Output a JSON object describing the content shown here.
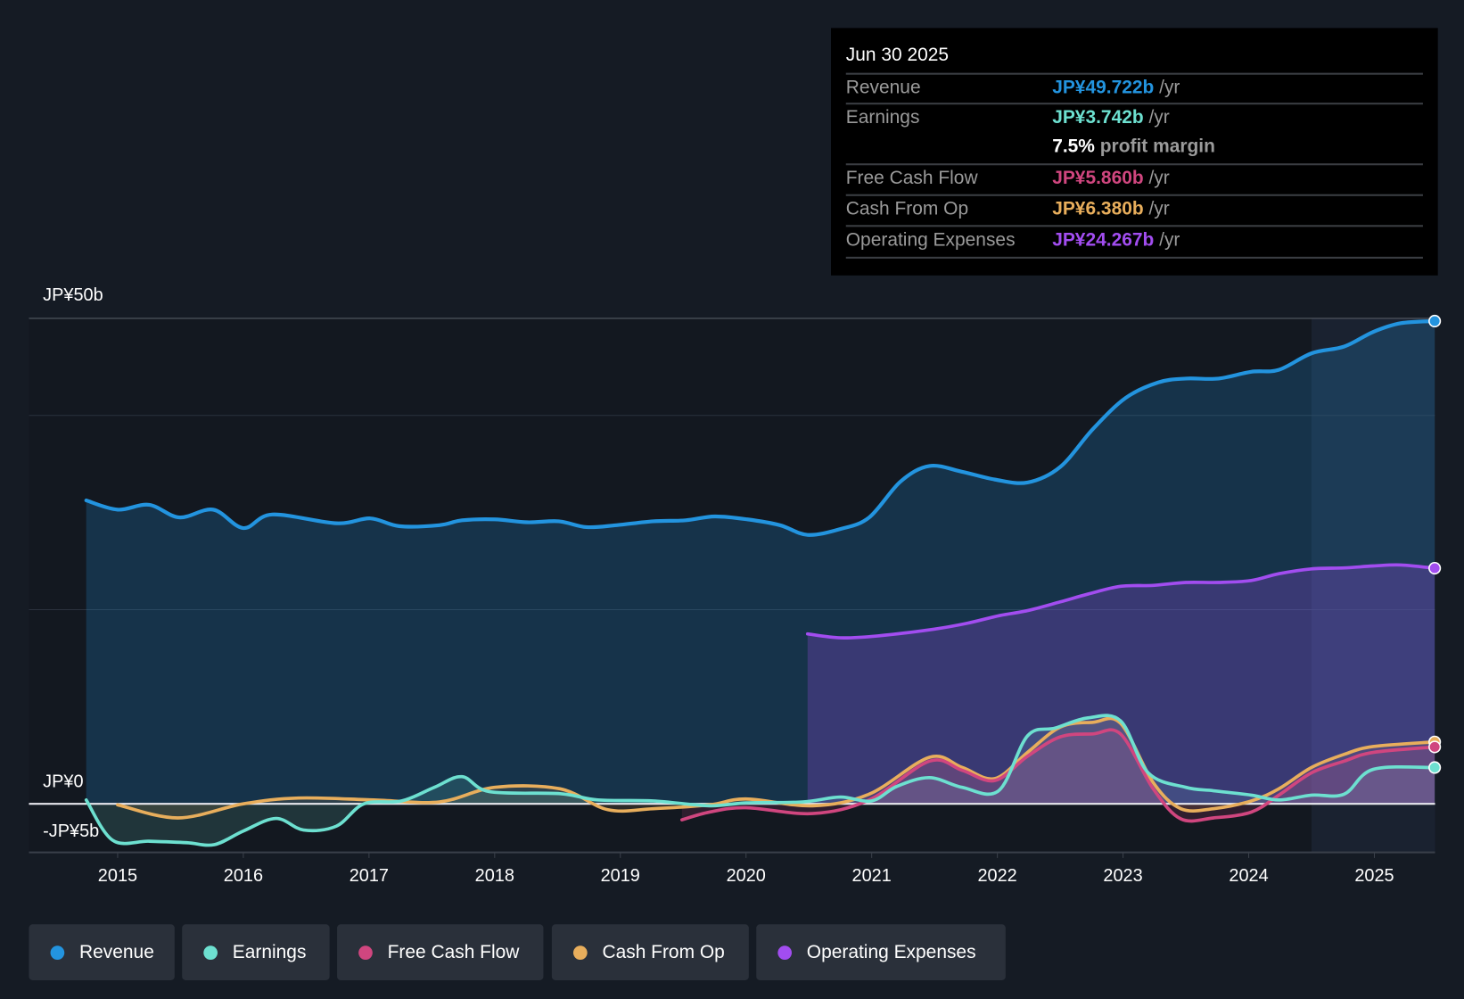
{
  "tooltip": {
    "date": "Jun 30 2025",
    "rows": [
      {
        "label": "Revenue",
        "value": "JP¥49.722b",
        "unit": " /yr",
        "color": "#2394df"
      },
      {
        "label": "Earnings",
        "value": "JP¥3.742b",
        "unit": " /yr",
        "color": "#6de0d0"
      },
      {
        "label": "",
        "value": "7.5%",
        "unit": " profit margin",
        "color": "#ffffff"
      },
      {
        "label": "Free Cash Flow",
        "value": "JP¥5.860b",
        "unit": " /yr",
        "color": "#d0467f"
      },
      {
        "label": "Cash From Op",
        "value": "JP¥6.380b",
        "unit": " /yr",
        "color": "#e8ae5c"
      },
      {
        "label": "Operating Expenses",
        "value": "JP¥24.267b",
        "unit": " /yr",
        "color": "#a24df0"
      }
    ]
  },
  "chart_data": {
    "type": "line",
    "title": "",
    "xlabel": "",
    "ylabel": "",
    "y_tick_labels": [
      "JP¥50b",
      "JP¥0",
      "-JP¥5b"
    ],
    "y_ticks": [
      50,
      0,
      -5
    ],
    "ylim": [
      -5,
      50
    ],
    "xlim": [
      2014.5,
      2025.5
    ],
    "x_ticks": [
      2015,
      2016,
      2017,
      2018,
      2019,
      2020,
      2021,
      2022,
      2023,
      2024,
      2025
    ],
    "x_tick_labels": [
      "2015",
      "2016",
      "2017",
      "2018",
      "2019",
      "2020",
      "2021",
      "2022",
      "2023",
      "2024",
      "2025"
    ],
    "highlight_from": 2024.5,
    "legend_position": "bottom-left",
    "series": [
      {
        "name": "Revenue",
        "color": "#2394df",
        "area": true,
        "points": [
          [
            2014.75,
            31.25
          ],
          [
            2015.0,
            30.3
          ],
          [
            2015.25,
            30.8
          ],
          [
            2015.49,
            29.5
          ],
          [
            2015.76,
            30.3
          ],
          [
            2016.0,
            28.4
          ],
          [
            2016.23,
            29.8
          ],
          [
            2016.74,
            28.9
          ],
          [
            2017.01,
            29.4
          ],
          [
            2017.24,
            28.6
          ],
          [
            2017.56,
            28.7
          ],
          [
            2017.74,
            29.2
          ],
          [
            2018.0,
            29.3
          ],
          [
            2018.26,
            29.0
          ],
          [
            2018.51,
            29.1
          ],
          [
            2018.73,
            28.5
          ],
          [
            2018.97,
            28.7
          ],
          [
            2019.26,
            29.1
          ],
          [
            2019.52,
            29.2
          ],
          [
            2019.75,
            29.6
          ],
          [
            2020.01,
            29.3
          ],
          [
            2020.27,
            28.7
          ],
          [
            2020.49,
            27.7
          ],
          [
            2020.75,
            28.3
          ],
          [
            2020.98,
            29.5
          ],
          [
            2021.23,
            33.2
          ],
          [
            2021.46,
            34.8
          ],
          [
            2021.72,
            34.2
          ],
          [
            2021.98,
            33.4
          ],
          [
            2022.24,
            33.1
          ],
          [
            2022.5,
            34.7
          ],
          [
            2022.76,
            38.6
          ],
          [
            2023.02,
            41.8
          ],
          [
            2023.28,
            43.4
          ],
          [
            2023.5,
            43.8
          ],
          [
            2023.76,
            43.8
          ],
          [
            2024.02,
            44.5
          ],
          [
            2024.24,
            44.7
          ],
          [
            2024.5,
            46.4
          ],
          [
            2024.76,
            47.1
          ],
          [
            2024.99,
            48.6
          ],
          [
            2025.21,
            49.5
          ],
          [
            2025.48,
            49.72
          ]
        ]
      },
      {
        "name": "Earnings",
        "color": "#6de0d0",
        "area": true,
        "points": [
          [
            2014.75,
            0.4
          ],
          [
            2014.96,
            -3.75
          ],
          [
            2015.25,
            -3.85
          ],
          [
            2015.55,
            -4.0
          ],
          [
            2015.77,
            -4.2
          ],
          [
            2016.0,
            -2.8
          ],
          [
            2016.26,
            -1.5
          ],
          [
            2016.48,
            -2.7
          ],
          [
            2016.74,
            -2.3
          ],
          [
            2016.96,
            0
          ],
          [
            2017.26,
            0.3
          ],
          [
            2017.52,
            1.7
          ],
          [
            2017.74,
            2.8
          ],
          [
            2017.96,
            1.25
          ],
          [
            2018.52,
            1.05
          ],
          [
            2018.82,
            0.4
          ],
          [
            2019.26,
            0.3
          ],
          [
            2019.71,
            -0.2
          ],
          [
            2020.0,
            0.1
          ],
          [
            2020.45,
            0.2
          ],
          [
            2020.75,
            0.7
          ],
          [
            2021.0,
            0.3
          ],
          [
            2021.2,
            1.8
          ],
          [
            2021.46,
            2.7
          ],
          [
            2021.72,
            1.7
          ],
          [
            2022.01,
            1.35
          ],
          [
            2022.24,
            7.0
          ],
          [
            2022.46,
            7.8
          ],
          [
            2022.72,
            8.85
          ],
          [
            2022.98,
            8.55
          ],
          [
            2023.2,
            3.2
          ],
          [
            2023.5,
            1.7
          ],
          [
            2023.72,
            1.35
          ],
          [
            2024.02,
            0.9
          ],
          [
            2024.24,
            0.4
          ],
          [
            2024.5,
            0.9
          ],
          [
            2024.76,
            1.0
          ],
          [
            2024.99,
            3.55
          ],
          [
            2025.48,
            3.74
          ]
        ]
      },
      {
        "name": "Free Cash Flow",
        "color": "#d0467f",
        "area": true,
        "points": [
          [
            2019.49,
            -1.65
          ],
          [
            2019.71,
            -0.85
          ],
          [
            2020.0,
            -0.4
          ],
          [
            2020.53,
            -1.0
          ],
          [
            2020.98,
            0.4
          ],
          [
            2021.46,
            4.4
          ],
          [
            2021.72,
            3.45
          ],
          [
            2021.98,
            2.4
          ],
          [
            2022.24,
            4.9
          ],
          [
            2022.5,
            6.9
          ],
          [
            2022.76,
            7.2
          ],
          [
            2022.98,
            7.2
          ],
          [
            2023.24,
            1.55
          ],
          [
            2023.46,
            -1.55
          ],
          [
            2023.72,
            -1.45
          ],
          [
            2024.02,
            -0.85
          ],
          [
            2024.24,
            0.9
          ],
          [
            2024.5,
            3.2
          ],
          [
            2024.76,
            4.4
          ],
          [
            2024.99,
            5.3
          ],
          [
            2025.48,
            5.86
          ]
        ]
      },
      {
        "name": "Cash From Op",
        "color": "#e8ae5c",
        "area": true,
        "points": [
          [
            2015.0,
            -0.1
          ],
          [
            2015.48,
            -1.45
          ],
          [
            2016.0,
            0
          ],
          [
            2016.44,
            0.6
          ],
          [
            2017.04,
            0.4
          ],
          [
            2017.56,
            0.2
          ],
          [
            2018.0,
            1.7
          ],
          [
            2018.52,
            1.55
          ],
          [
            2018.9,
            -0.6
          ],
          [
            2019.26,
            -0.5
          ],
          [
            2019.71,
            -0.1
          ],
          [
            2020.0,
            0.5
          ],
          [
            2020.53,
            -0.2
          ],
          [
            2020.98,
            1.0
          ],
          [
            2021.46,
            4.8
          ],
          [
            2021.72,
            3.75
          ],
          [
            2021.98,
            2.6
          ],
          [
            2022.24,
            5.3
          ],
          [
            2022.5,
            7.9
          ],
          [
            2022.76,
            8.4
          ],
          [
            2022.98,
            8.3
          ],
          [
            2023.24,
            2.2
          ],
          [
            2023.46,
            -0.5
          ],
          [
            2023.72,
            -0.5
          ],
          [
            2024.02,
            0.3
          ],
          [
            2024.24,
            1.55
          ],
          [
            2024.5,
            3.75
          ],
          [
            2024.76,
            5.1
          ],
          [
            2024.99,
            5.9
          ],
          [
            2025.48,
            6.38
          ]
        ]
      },
      {
        "name": "Operating Expenses",
        "color": "#a24df0",
        "area": true,
        "points": [
          [
            2020.49,
            17.5
          ],
          [
            2020.75,
            17.1
          ],
          [
            2021.05,
            17.3
          ],
          [
            2021.5,
            18.0
          ],
          [
            2021.76,
            18.6
          ],
          [
            2022.02,
            19.4
          ],
          [
            2022.24,
            19.9
          ],
          [
            2022.5,
            20.8
          ],
          [
            2022.72,
            21.6
          ],
          [
            2022.98,
            22.4
          ],
          [
            2023.24,
            22.5
          ],
          [
            2023.5,
            22.8
          ],
          [
            2023.76,
            22.8
          ],
          [
            2024.02,
            23.0
          ],
          [
            2024.24,
            23.7
          ],
          [
            2024.5,
            24.2
          ],
          [
            2024.76,
            24.3
          ],
          [
            2024.99,
            24.5
          ],
          [
            2025.21,
            24.6
          ],
          [
            2025.48,
            24.27
          ]
        ]
      }
    ]
  },
  "legend": [
    {
      "label": "Revenue",
      "color": "#2394df"
    },
    {
      "label": "Earnings",
      "color": "#6de0d0"
    },
    {
      "label": "Free Cash Flow",
      "color": "#d0467f"
    },
    {
      "label": "Cash From Op",
      "color": "#e8ae5c"
    },
    {
      "label": "Operating Expenses",
      "color": "#a24df0"
    }
  ]
}
